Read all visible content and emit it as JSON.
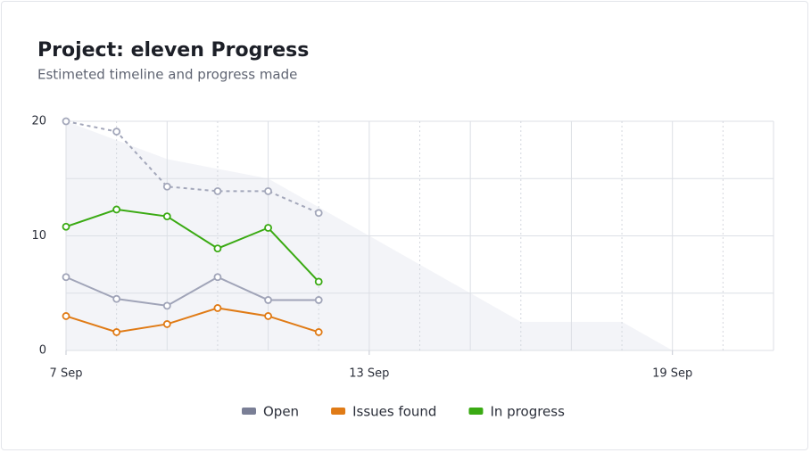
{
  "chart_data": {
    "type": "line",
    "title": "Project: eleven Progress",
    "subtitle": "Estimeted timeline and progress made",
    "x": [
      7,
      8,
      9,
      10,
      11,
      12
    ],
    "xlim": [
      7,
      21
    ],
    "xticks": [
      {
        "value": 7,
        "label": "7 Sep"
      },
      {
        "value": 13,
        "label": "13 Sep"
      },
      {
        "value": 19,
        "label": "19 Sep"
      }
    ],
    "xgrid_major": [
      7,
      9,
      11,
      13,
      15,
      17,
      19,
      21
    ],
    "xgrid_minor": [
      8,
      10,
      12,
      14,
      16,
      18,
      20
    ],
    "ylim": [
      0,
      20
    ],
    "yticks": [
      0,
      10,
      20
    ],
    "minor_yticks": [
      5,
      15
    ],
    "area": {
      "color": "#f3f4f8",
      "x": [
        7,
        9,
        11,
        13,
        16,
        18,
        19
      ],
      "values": [
        20,
        16.7,
        15,
        10,
        2.5,
        2.5,
        0
      ]
    },
    "series": [
      {
        "color": "#a3a7ba",
        "dashed": true,
        "values": [
          20,
          19.1,
          14.3,
          13.9,
          13.9,
          12
        ]
      },
      {
        "name": "Open",
        "color": "#7a7f96",
        "line_color": "#a0a4b8",
        "values": [
          6.4,
          4.5,
          3.9,
          6.4,
          4.4,
          4.4
        ]
      },
      {
        "name": "Issues found",
        "color": "#e07b16",
        "values": [
          3,
          1.6,
          2.3,
          3.7,
          3,
          1.6
        ]
      },
      {
        "name": "In progress",
        "color": "#3aaa13",
        "values": [
          10.8,
          12.3,
          11.7,
          8.9,
          10.7,
          6
        ]
      }
    ]
  }
}
